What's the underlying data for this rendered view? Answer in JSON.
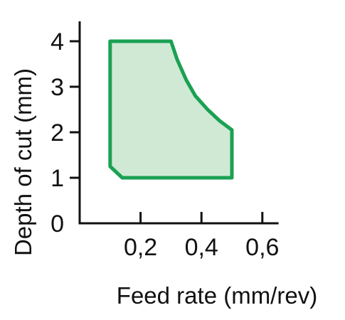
{
  "chart_data": {
    "type": "area",
    "title": "",
    "xlabel": "Feed rate (mm/rev)",
    "ylabel": "Depth of cut (mm)",
    "xlim": [
      0,
      0.7
    ],
    "ylim": [
      0,
      4.5
    ],
    "x_ticks": [
      {
        "value": 0.2,
        "label": "0,2"
      },
      {
        "value": 0.4,
        "label": "0,4"
      },
      {
        "value": 0.6,
        "label": "0,6"
      }
    ],
    "y_ticks": [
      {
        "value": 0,
        "label": "0"
      },
      {
        "value": 1,
        "label": "1"
      },
      {
        "value": 2,
        "label": "2"
      },
      {
        "value": 3,
        "label": "3"
      },
      {
        "value": 4,
        "label": "4"
      }
    ],
    "grid": false,
    "legend": "none",
    "region": {
      "boundary": [
        {
          "x": 0.1,
          "y": 1.25
        },
        {
          "x": 0.1,
          "y": 4.0
        },
        {
          "x": 0.3,
          "y": 4.0
        },
        {
          "x": 0.32,
          "y": 3.6
        },
        {
          "x": 0.35,
          "y": 3.15
        },
        {
          "x": 0.38,
          "y": 2.8
        },
        {
          "x": 0.42,
          "y": 2.5
        },
        {
          "x": 0.46,
          "y": 2.25
        },
        {
          "x": 0.5,
          "y": 2.05
        },
        {
          "x": 0.5,
          "y": 1.0
        },
        {
          "x": 0.14,
          "y": 1.0
        }
      ],
      "stroke_color": "#1aa152",
      "fill_color": "#cfe9d5"
    }
  }
}
